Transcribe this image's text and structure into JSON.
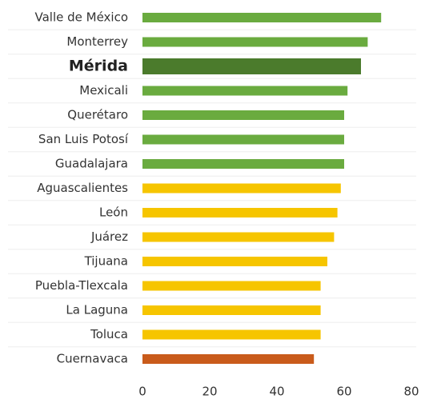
{
  "chart_data": {
    "type": "barh",
    "categories": [
      "Valle de México",
      "Monterrey",
      "Mérida",
      "Mexicali",
      "Querétaro",
      "San Luis Potosí",
      "Guadalajara",
      "Aguascalientes",
      "León",
      "Juárez",
      "Tijuana",
      "Puebla-Tlexcala",
      "La Laguna",
      "Toluca",
      "Cuernavaca"
    ],
    "values": [
      71,
      67,
      65,
      61,
      60,
      60,
      60,
      59,
      58,
      57,
      55,
      53,
      53,
      53,
      51
    ],
    "colors": [
      "#6aab3f",
      "#6aab3f",
      "#4b7b2c",
      "#6aab3f",
      "#6aab3f",
      "#6aab3f",
      "#6aab3f",
      "#f6c500",
      "#f6c500",
      "#f6c500",
      "#f6c500",
      "#f6c500",
      "#f6c500",
      "#f6c500",
      "#c95b1b"
    ],
    "highlight": 2,
    "xlim": [
      0,
      80
    ],
    "xticks": [
      0,
      20,
      40,
      60,
      80
    ],
    "grid": false
  }
}
